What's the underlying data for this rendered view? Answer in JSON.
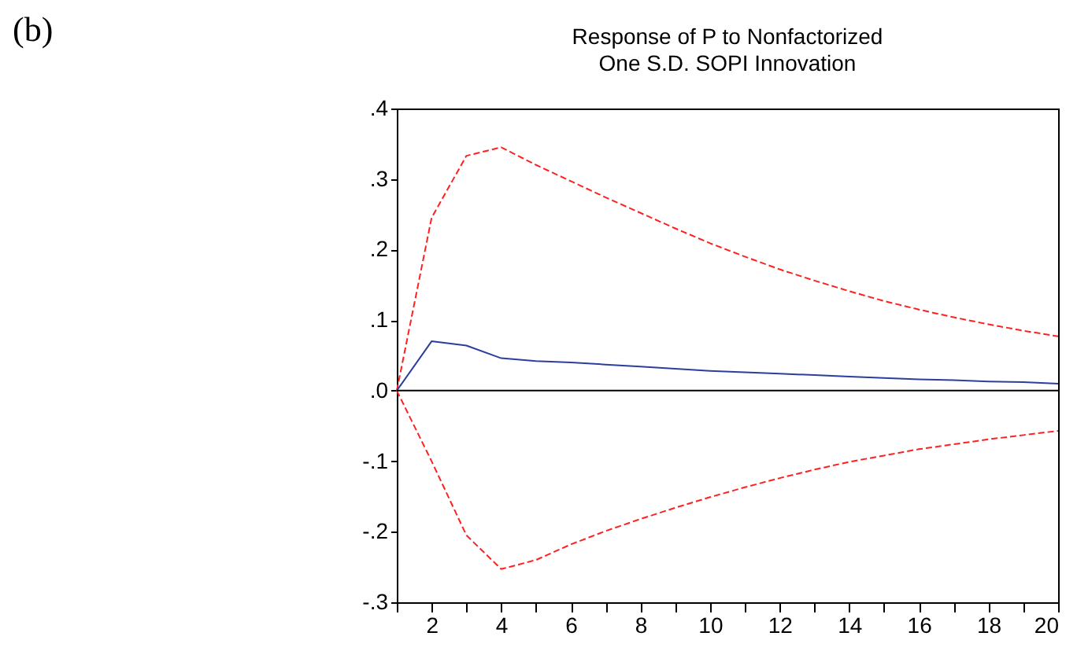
{
  "chart_data": {
    "type": "line",
    "title": "Response of P to Nonfactorized\nOne S.D. SOPI Innovation",
    "annotations": [
      "(b)"
    ],
    "x": [
      1,
      2,
      3,
      4,
      5,
      6,
      7,
      8,
      9,
      10,
      11,
      12,
      13,
      14,
      15,
      16,
      17,
      18,
      19,
      20
    ],
    "series": [
      {
        "color": "#ff2020",
        "line_style": "dashed",
        "values": [
          0,
          0.245,
          0.333,
          0.345,
          0.32,
          0.297,
          0.274,
          0.252,
          0.23,
          0.209,
          0.19,
          0.172,
          0.156,
          0.141,
          0.127,
          0.115,
          0.104,
          0.094,
          0.085,
          0.077
        ]
      },
      {
        "color": "#2a3f9d",
        "line_style": "solid",
        "values": [
          0,
          0.07,
          0.064,
          0.046,
          0.042,
          0.04,
          0.037,
          0.034,
          0.031,
          0.028,
          0.026,
          0.024,
          0.022,
          0.02,
          0.018,
          0.016,
          0.015,
          0.013,
          0.012,
          0.01
        ]
      },
      {
        "color": "#ff2020",
        "line_style": "dashed",
        "values": [
          0,
          -0.1,
          -0.205,
          -0.253,
          -0.24,
          -0.218,
          -0.199,
          -0.182,
          -0.166,
          -0.151,
          -0.137,
          -0.124,
          -0.112,
          -0.101,
          -0.092,
          -0.083,
          -0.076,
          -0.069,
          -0.063,
          -0.057
        ]
      }
    ],
    "xlim": [
      1,
      20
    ],
    "xticks": [
      {
        "value": 1,
        "label": null
      },
      2,
      {
        "value": 3,
        "label": null
      },
      4,
      {
        "value": 5,
        "label": null
      },
      6,
      {
        "value": 7,
        "label": null
      },
      8,
      {
        "value": 9,
        "label": null
      },
      10,
      {
        "value": 11,
        "label": null
      },
      12,
      {
        "value": 13,
        "label": null
      },
      14,
      {
        "value": 15,
        "label": null
      },
      16,
      {
        "value": 17,
        "label": null
      },
      18,
      {
        "value": 19,
        "label": null
      },
      20
    ],
    "ylim": [
      -0.3,
      0.4
    ],
    "yticks": [
      {
        "value": -0.3,
        "label": "-.3"
      },
      {
        "value": -0.2,
        "label": "-.2"
      },
      {
        "value": -0.1,
        "label": "-.1"
      },
      {
        "value": 0,
        "label": ".0"
      },
      {
        "value": 0.1,
        "label": ".1"
      },
      {
        "value": 0.2,
        "label": ".2"
      },
      {
        "value": 0.3,
        "label": ".3"
      },
      {
        "value": 0.4,
        "label": ".4"
      }
    ],
    "ref_lines": [
      {
        "axis": "y",
        "value": 0,
        "color": "#000000"
      }
    ]
  }
}
